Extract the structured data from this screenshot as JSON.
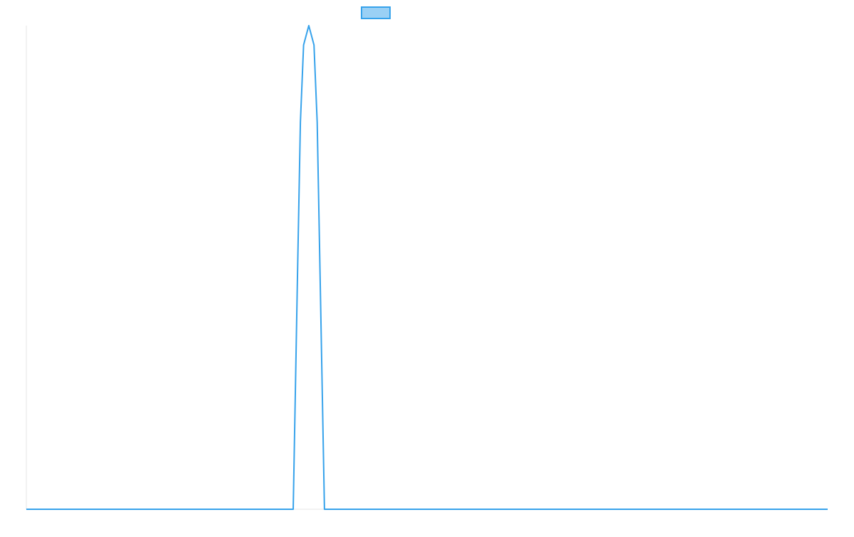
{
  "chart_data": {
    "type": "line",
    "title": "",
    "xlabel": "",
    "ylabel": "",
    "grid": false,
    "legend_position": "top-center",
    "x": [
      0,
      0.33,
      0.5,
      0.67,
      1
    ],
    "x_range": [
      0,
      1
    ],
    "ylim": [
      0,
      1
    ],
    "series": [
      {
        "name": "",
        "color": "#36A2EB",
        "fill_color": "#9AD0F5",
        "fill": false,
        "points": [
          {
            "x": 0.0,
            "y": 0
          },
          {
            "x": 0.333,
            "y": 0
          },
          {
            "x": 0.338,
            "y": 0.45
          },
          {
            "x": 0.342,
            "y": 0.8
          },
          {
            "x": 0.346,
            "y": 0.96
          },
          {
            "x": 0.3525,
            "y": 1.0
          },
          {
            "x": 0.359,
            "y": 0.96
          },
          {
            "x": 0.363,
            "y": 0.8
          },
          {
            "x": 0.367,
            "y": 0.45
          },
          {
            "x": 0.372,
            "y": 0
          },
          {
            "x": 1.0,
            "y": 0
          }
        ]
      }
    ]
  }
}
